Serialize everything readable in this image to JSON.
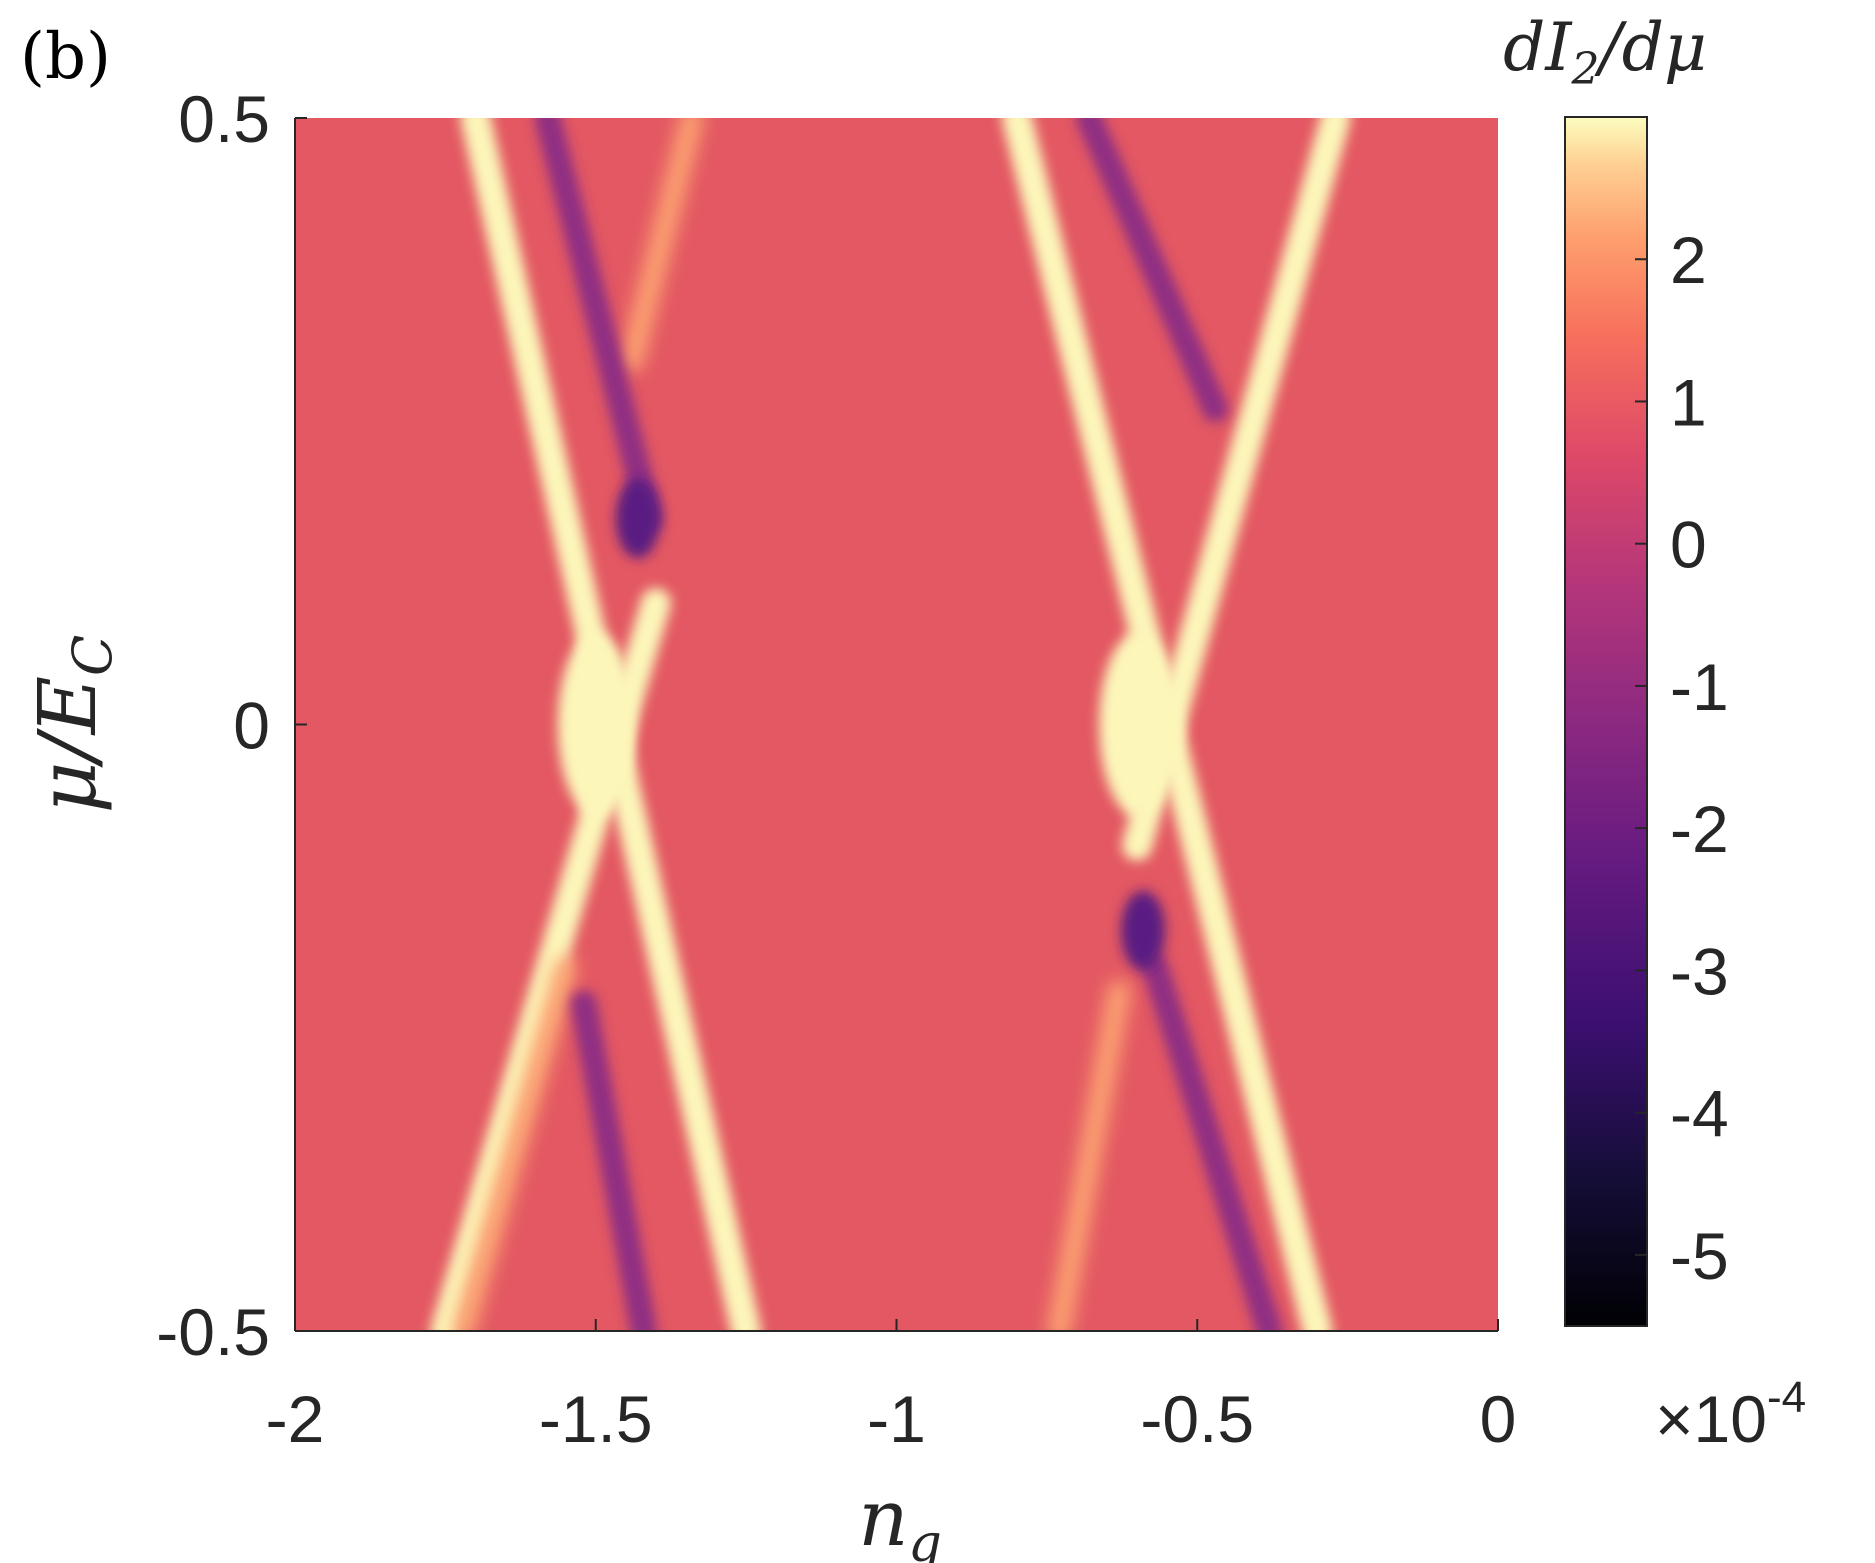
{
  "chart_data": {
    "type": "heatmap",
    "panel_label": "(b)",
    "xlabel": "n_g",
    "ylabel": "μ/E_C",
    "colorbar_label": "dI_2/dμ",
    "colorbar_exponent": "×10^-4",
    "xlim": [
      -2,
      0
    ],
    "ylim": [
      -0.5,
      0.5
    ],
    "clim": [
      -5.5,
      3
    ],
    "x_ticks": [
      "-2",
      "-1.5",
      "-1",
      "-0.5",
      "0"
    ],
    "y_ticks": [
      "-0.5",
      "0",
      "0.5"
    ],
    "colorbar_ticks": [
      "2",
      "1",
      "0",
      "-1",
      "-2",
      "-3",
      "-4",
      "-5"
    ],
    "colormap": "magma",
    "background_value": 0,
    "features": [
      {
        "kind": "positive-line",
        "value": 3,
        "x_start": -1.7,
        "y_start": 0.5,
        "x_end": -1.25,
        "y_end": -0.5
      },
      {
        "kind": "positive-line",
        "value": 3,
        "x_start": -1.75,
        "y_start": -0.5,
        "x_end": -1.4,
        "y_end": 0.1
      },
      {
        "kind": "positive-line",
        "value": 1.3,
        "x_start": -1.34,
        "y_start": 0.5,
        "x_end": -1.44,
        "y_end": 0.3
      },
      {
        "kind": "positive-line",
        "value": 1.3,
        "x_start": -1.55,
        "y_start": -0.2,
        "x_end": -1.72,
        "y_end": -0.5
      },
      {
        "kind": "negative-line",
        "value": -1.8,
        "x_start": -1.58,
        "y_start": 0.5,
        "x_end": -1.41,
        "y_end": 0.17
      },
      {
        "kind": "negative-line",
        "value": -1.8,
        "x_start": -1.52,
        "y_start": -0.23,
        "x_end": -1.42,
        "y_end": -0.5
      },
      {
        "kind": "negative-blob",
        "value": -3,
        "x": -1.43,
        "y": 0.17
      },
      {
        "kind": "positive-line",
        "value": 3,
        "x_start": -0.8,
        "y_start": 0.5,
        "x_end": -0.3,
        "y_end": -0.5
      },
      {
        "kind": "positive-line",
        "value": 3,
        "x_start": -0.27,
        "y_start": 0.5,
        "x_end": -0.6,
        "y_end": -0.1
      },
      {
        "kind": "positive-line",
        "value": 1.3,
        "x_start": -0.63,
        "y_start": -0.22,
        "x_end": -0.73,
        "y_end": -0.5
      },
      {
        "kind": "negative-line",
        "value": -1.8,
        "x_start": -0.68,
        "y_start": 0.5,
        "x_end": -0.47,
        "y_end": 0.26
      },
      {
        "kind": "negative-line",
        "value": -1.8,
        "x_start": -0.57,
        "y_start": -0.2,
        "x_end": -0.38,
        "y_end": -0.5
      },
      {
        "kind": "negative-blob",
        "value": -3,
        "x": -0.59,
        "y": -0.17
      },
      {
        "kind": "crossing",
        "value": 3,
        "x": -1.5,
        "y": 0
      },
      {
        "kind": "crossing",
        "value": 3,
        "x": -0.6,
        "y": 0
      }
    ]
  }
}
